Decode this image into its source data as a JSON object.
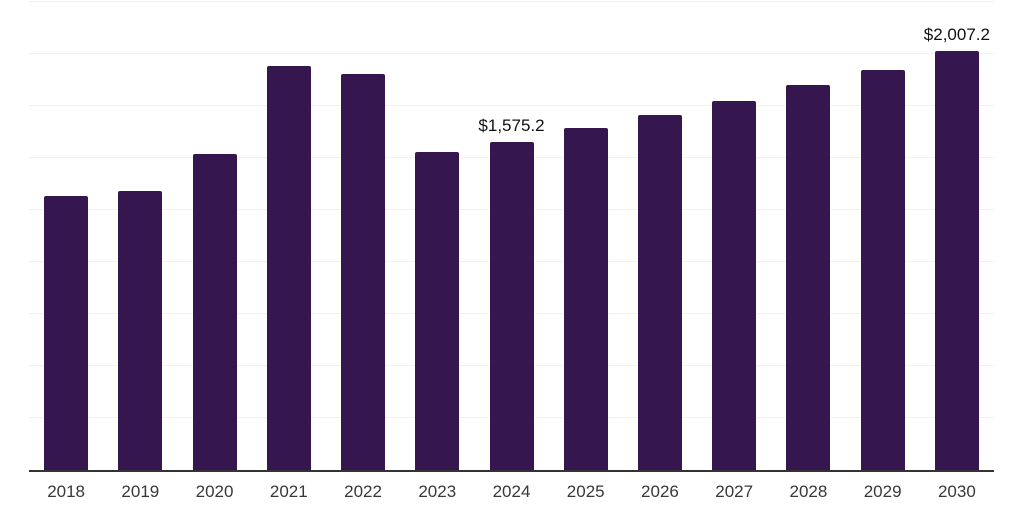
{
  "chart_data": {
    "type": "bar",
    "title": "",
    "xlabel": "",
    "ylabel": "",
    "categories": [
      "2018",
      "2019",
      "2020",
      "2021",
      "2022",
      "2023",
      "2024",
      "2025",
      "2026",
      "2027",
      "2028",
      "2029",
      "2030"
    ],
    "series": [
      {
        "name": "value_usd",
        "values": [
          1314.0,
          1337.5,
          1513.5,
          1938.2,
          1898.4,
          1523.1,
          1575.2,
          1638.1,
          1700.4,
          1770.4,
          1844.2,
          1917.6,
          2007.2
        ]
      }
    ],
    "data_labels": [
      {
        "category": "2024",
        "text": "$1,575.2"
      },
      {
        "category": "2030",
        "text": "$2,007.2"
      }
    ],
    "ylim": [
      0,
      2244
    ],
    "y_axis_tick_labels": "none",
    "gridline_count": 9,
    "grid": "horizontal",
    "legend_position": "none",
    "colors": {
      "bar": "#36164E",
      "axis_line": "#333333",
      "gridline": "#f2f2f2",
      "x_tick_label": "#383838",
      "data_label": "#111111",
      "background": "#ffffff"
    }
  }
}
